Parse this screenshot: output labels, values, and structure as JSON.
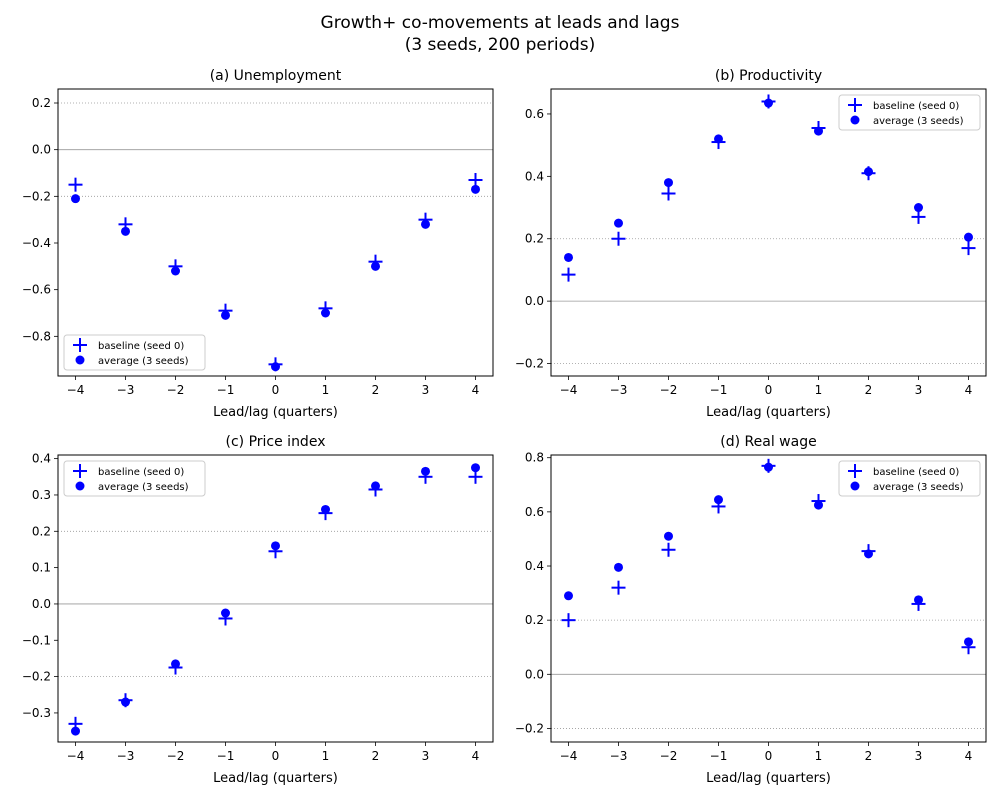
{
  "figure": {
    "title_line1": "Growth+ co-movements at leads and lags",
    "title_line2": "(3 seeds, 200 periods)"
  },
  "colors": {
    "marker": "#0000ff",
    "zero_line": "#999999",
    "grid": "#999999",
    "axis": "#000000"
  },
  "chart_data": [
    {
      "type": "scatter",
      "title": "(a) Unemployment",
      "xlabel": "Lead/lag (quarters)",
      "ylabel": "",
      "xlim": [
        -4.35,
        4.35
      ],
      "ylim": [
        -0.97,
        0.26
      ],
      "x_ticks": [
        -4,
        -3,
        -2,
        -1,
        0,
        1,
        2,
        3,
        4
      ],
      "x_tick_labels": [
        "−4",
        "−3",
        "−2",
        "−1",
        "0",
        "1",
        "2",
        "3",
        "4"
      ],
      "y_ticks": [
        -0.8,
        -0.6,
        -0.4,
        -0.2,
        0.0,
        0.2
      ],
      "y_tick_labels": [
        "−0.8",
        "−0.6",
        "−0.4",
        "−0.2",
        "0.0",
        "0.2"
      ],
      "grid_y": [
        -0.2,
        0.2
      ],
      "zero_line": 0,
      "legend_position": "lower-left",
      "x": [
        -4,
        -3,
        -2,
        -1,
        0,
        1,
        2,
        3,
        4
      ],
      "series": [
        {
          "name": "baseline (seed 0)",
          "marker": "plus",
          "values": [
            -0.15,
            -0.32,
            -0.5,
            -0.69,
            -0.92,
            -0.68,
            -0.48,
            -0.3,
            -0.13
          ]
        },
        {
          "name": "average (3 seeds)",
          "marker": "circle",
          "values": [
            -0.21,
            -0.35,
            -0.52,
            -0.71,
            -0.93,
            -0.7,
            -0.5,
            -0.32,
            -0.17
          ]
        }
      ]
    },
    {
      "type": "scatter",
      "title": "(b) Productivity",
      "xlabel": "Lead/lag (quarters)",
      "ylabel": "",
      "xlim": [
        -4.35,
        4.35
      ],
      "ylim": [
        -0.24,
        0.68
      ],
      "x_ticks": [
        -4,
        -3,
        -2,
        -1,
        0,
        1,
        2,
        3,
        4
      ],
      "x_tick_labels": [
        "−4",
        "−3",
        "−2",
        "−1",
        "0",
        "1",
        "2",
        "3",
        "4"
      ],
      "y_ticks": [
        -0.2,
        0.0,
        0.2,
        0.4,
        0.6
      ],
      "y_tick_labels": [
        "−0.2",
        "0.0",
        "0.2",
        "0.4",
        "0.6"
      ],
      "grid_y": [
        -0.2,
        0.2
      ],
      "zero_line": 0,
      "legend_position": "upper-right",
      "x": [
        -4,
        -3,
        -2,
        -1,
        0,
        1,
        2,
        3,
        4
      ],
      "series": [
        {
          "name": "baseline (seed 0)",
          "marker": "plus",
          "values": [
            0.085,
            0.2,
            0.345,
            0.51,
            0.64,
            0.555,
            0.41,
            0.27,
            0.17
          ]
        },
        {
          "name": "average (3 seeds)",
          "marker": "circle",
          "values": [
            0.14,
            0.25,
            0.38,
            0.52,
            0.635,
            0.545,
            0.415,
            0.3,
            0.205
          ]
        }
      ]
    },
    {
      "type": "scatter",
      "title": "(c) Price index",
      "xlabel": "Lead/lag (quarters)",
      "ylabel": "",
      "xlim": [
        -4.35,
        4.35
      ],
      "ylim": [
        -0.38,
        0.41
      ],
      "x_ticks": [
        -4,
        -3,
        -2,
        -1,
        0,
        1,
        2,
        3,
        4
      ],
      "x_tick_labels": [
        "−4",
        "−3",
        "−2",
        "−1",
        "0",
        "1",
        "2",
        "3",
        "4"
      ],
      "y_ticks": [
        -0.3,
        -0.2,
        -0.1,
        0.0,
        0.1,
        0.2,
        0.3,
        0.4
      ],
      "y_tick_labels": [
        "−0.3",
        "−0.2",
        "−0.1",
        "0.0",
        "0.1",
        "0.2",
        "0.3",
        "0.4"
      ],
      "grid_y": [
        -0.2,
        0.2
      ],
      "zero_line": 0,
      "legend_position": "upper-left",
      "x": [
        -4,
        -3,
        -2,
        -1,
        0,
        1,
        2,
        3,
        4
      ],
      "series": [
        {
          "name": "baseline (seed 0)",
          "marker": "plus",
          "values": [
            -0.33,
            -0.265,
            -0.175,
            -0.04,
            0.145,
            0.25,
            0.315,
            0.35,
            0.35
          ]
        },
        {
          "name": "average (3 seeds)",
          "marker": "circle",
          "values": [
            -0.35,
            -0.27,
            -0.165,
            -0.025,
            0.16,
            0.26,
            0.325,
            0.365,
            0.375
          ]
        }
      ]
    },
    {
      "type": "scatter",
      "title": "(d) Real wage",
      "xlabel": "Lead/lag (quarters)",
      "ylabel": "",
      "xlim": [
        -4.35,
        4.35
      ],
      "ylim": [
        -0.25,
        0.81
      ],
      "x_ticks": [
        -4,
        -3,
        -2,
        -1,
        0,
        1,
        2,
        3,
        4
      ],
      "x_tick_labels": [
        "−4",
        "−3",
        "−2",
        "−1",
        "0",
        "1",
        "2",
        "3",
        "4"
      ],
      "y_ticks": [
        -0.2,
        0.0,
        0.2,
        0.4,
        0.6,
        0.8
      ],
      "y_tick_labels": [
        "−0.2",
        "0.0",
        "0.2",
        "0.4",
        "0.6",
        "0.8"
      ],
      "grid_y": [
        -0.2,
        0.2
      ],
      "zero_line": 0,
      "legend_position": "upper-right",
      "x": [
        -4,
        -3,
        -2,
        -1,
        0,
        1,
        2,
        3,
        4
      ],
      "series": [
        {
          "name": "baseline (seed 0)",
          "marker": "plus",
          "values": [
            0.2,
            0.32,
            0.46,
            0.62,
            0.77,
            0.64,
            0.455,
            0.26,
            0.1
          ]
        },
        {
          "name": "average (3 seeds)",
          "marker": "circle",
          "values": [
            0.29,
            0.395,
            0.51,
            0.645,
            0.765,
            0.625,
            0.445,
            0.275,
            0.12
          ]
        }
      ]
    }
  ]
}
